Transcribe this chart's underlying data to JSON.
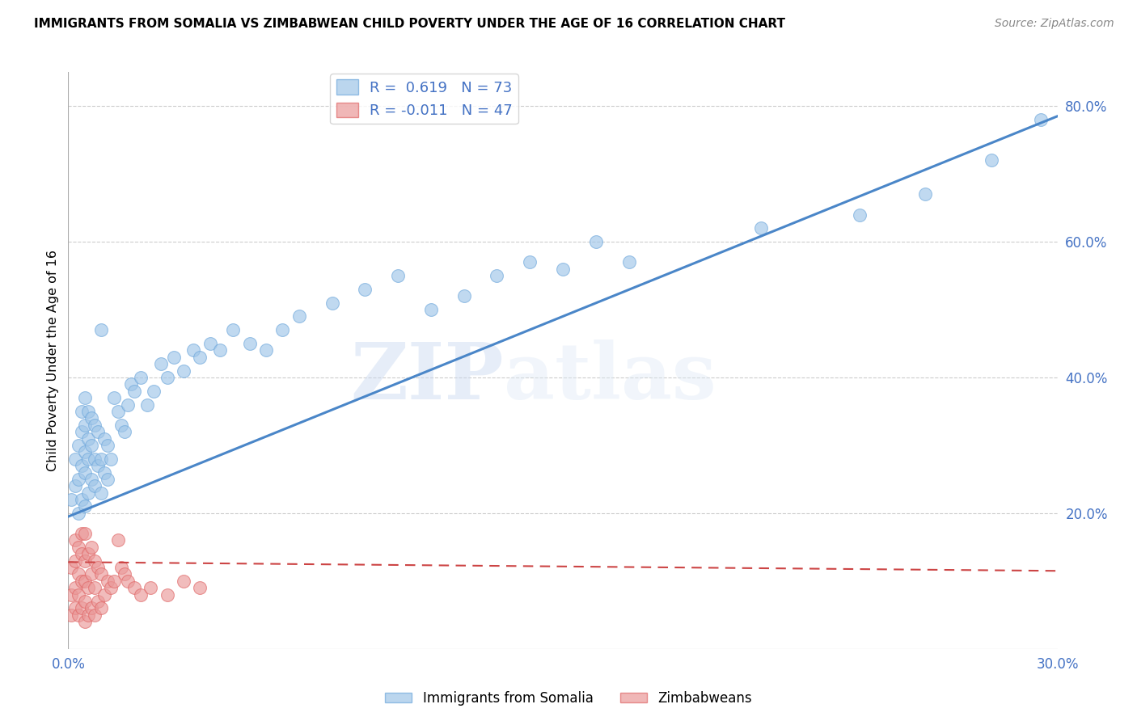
{
  "title": "IMMIGRANTS FROM SOMALIA VS ZIMBABWEAN CHILD POVERTY UNDER THE AGE OF 16 CORRELATION CHART",
  "source": "Source: ZipAtlas.com",
  "ylabel": "Child Poverty Under the Age of 16",
  "xlim": [
    0.0,
    0.3
  ],
  "ylim": [
    0.0,
    0.85
  ],
  "xticks": [
    0.0,
    0.05,
    0.1,
    0.15,
    0.2,
    0.25,
    0.3
  ],
  "xticklabels": [
    "0.0%",
    "",
    "",
    "",
    "",
    "",
    "30.0%"
  ],
  "yticks_right": [
    0.0,
    0.2,
    0.4,
    0.6,
    0.8
  ],
  "yticklabels_right": [
    "",
    "20.0%",
    "40.0%",
    "60.0%",
    "80.0%"
  ],
  "somalia_color": "#9fc5e8",
  "somalia_edge": "#6fa8dc",
  "zimbabwe_color": "#ea9999",
  "zimbabwe_edge": "#e06666",
  "somalia_line_color": "#4a86c8",
  "zimbabwe_line_color": "#cc4444",
  "R_somalia": 0.619,
  "N_somalia": 73,
  "R_zimbabwe": -0.011,
  "N_zimbabwe": 47,
  "watermark_zip": "ZIP",
  "watermark_atlas": "atlas",
  "background_color": "#ffffff",
  "grid_color": "#cccccc",
  "tick_color": "#4472c4",
  "somalia_line_x0": 0.0,
  "somalia_line_y0": 0.195,
  "somalia_line_x1": 0.3,
  "somalia_line_y1": 0.785,
  "zimbabwe_line_x0": 0.0,
  "zimbabwe_line_y0": 0.128,
  "zimbabwe_line_x1": 0.3,
  "zimbabwe_line_y1": 0.115,
  "somalia_scatter_x": [
    0.001,
    0.002,
    0.002,
    0.003,
    0.003,
    0.003,
    0.004,
    0.004,
    0.004,
    0.004,
    0.005,
    0.005,
    0.005,
    0.005,
    0.005,
    0.006,
    0.006,
    0.006,
    0.006,
    0.007,
    0.007,
    0.007,
    0.008,
    0.008,
    0.008,
    0.009,
    0.009,
    0.01,
    0.01,
    0.01,
    0.011,
    0.011,
    0.012,
    0.012,
    0.013,
    0.014,
    0.015,
    0.016,
    0.017,
    0.018,
    0.019,
    0.02,
    0.022,
    0.024,
    0.026,
    0.028,
    0.03,
    0.032,
    0.035,
    0.038,
    0.04,
    0.043,
    0.046,
    0.05,
    0.055,
    0.06,
    0.065,
    0.07,
    0.08,
    0.09,
    0.1,
    0.11,
    0.12,
    0.13,
    0.14,
    0.15,
    0.16,
    0.17,
    0.21,
    0.24,
    0.26,
    0.28,
    0.295
  ],
  "somalia_scatter_y": [
    0.22,
    0.24,
    0.28,
    0.2,
    0.25,
    0.3,
    0.22,
    0.27,
    0.32,
    0.35,
    0.21,
    0.26,
    0.29,
    0.33,
    0.37,
    0.23,
    0.28,
    0.31,
    0.35,
    0.25,
    0.3,
    0.34,
    0.24,
    0.28,
    0.33,
    0.27,
    0.32,
    0.23,
    0.28,
    0.47,
    0.26,
    0.31,
    0.25,
    0.3,
    0.28,
    0.37,
    0.35,
    0.33,
    0.32,
    0.36,
    0.39,
    0.38,
    0.4,
    0.36,
    0.38,
    0.42,
    0.4,
    0.43,
    0.41,
    0.44,
    0.43,
    0.45,
    0.44,
    0.47,
    0.45,
    0.44,
    0.47,
    0.49,
    0.51,
    0.53,
    0.55,
    0.5,
    0.52,
    0.55,
    0.57,
    0.56,
    0.6,
    0.57,
    0.62,
    0.64,
    0.67,
    0.72,
    0.78
  ],
  "zimbabwe_scatter_x": [
    0.001,
    0.001,
    0.001,
    0.002,
    0.002,
    0.002,
    0.002,
    0.003,
    0.003,
    0.003,
    0.003,
    0.004,
    0.004,
    0.004,
    0.004,
    0.005,
    0.005,
    0.005,
    0.005,
    0.005,
    0.006,
    0.006,
    0.006,
    0.007,
    0.007,
    0.007,
    0.008,
    0.008,
    0.008,
    0.009,
    0.009,
    0.01,
    0.01,
    0.011,
    0.012,
    0.013,
    0.014,
    0.015,
    0.016,
    0.017,
    0.018,
    0.02,
    0.022,
    0.025,
    0.03,
    0.035,
    0.04
  ],
  "zimbabwe_scatter_y": [
    0.05,
    0.08,
    0.12,
    0.06,
    0.09,
    0.13,
    0.16,
    0.05,
    0.08,
    0.11,
    0.15,
    0.06,
    0.1,
    0.14,
    0.17,
    0.04,
    0.07,
    0.1,
    0.13,
    0.17,
    0.05,
    0.09,
    0.14,
    0.06,
    0.11,
    0.15,
    0.05,
    0.09,
    0.13,
    0.07,
    0.12,
    0.06,
    0.11,
    0.08,
    0.1,
    0.09,
    0.1,
    0.16,
    0.12,
    0.11,
    0.1,
    0.09,
    0.08,
    0.09,
    0.08,
    0.1,
    0.09
  ]
}
